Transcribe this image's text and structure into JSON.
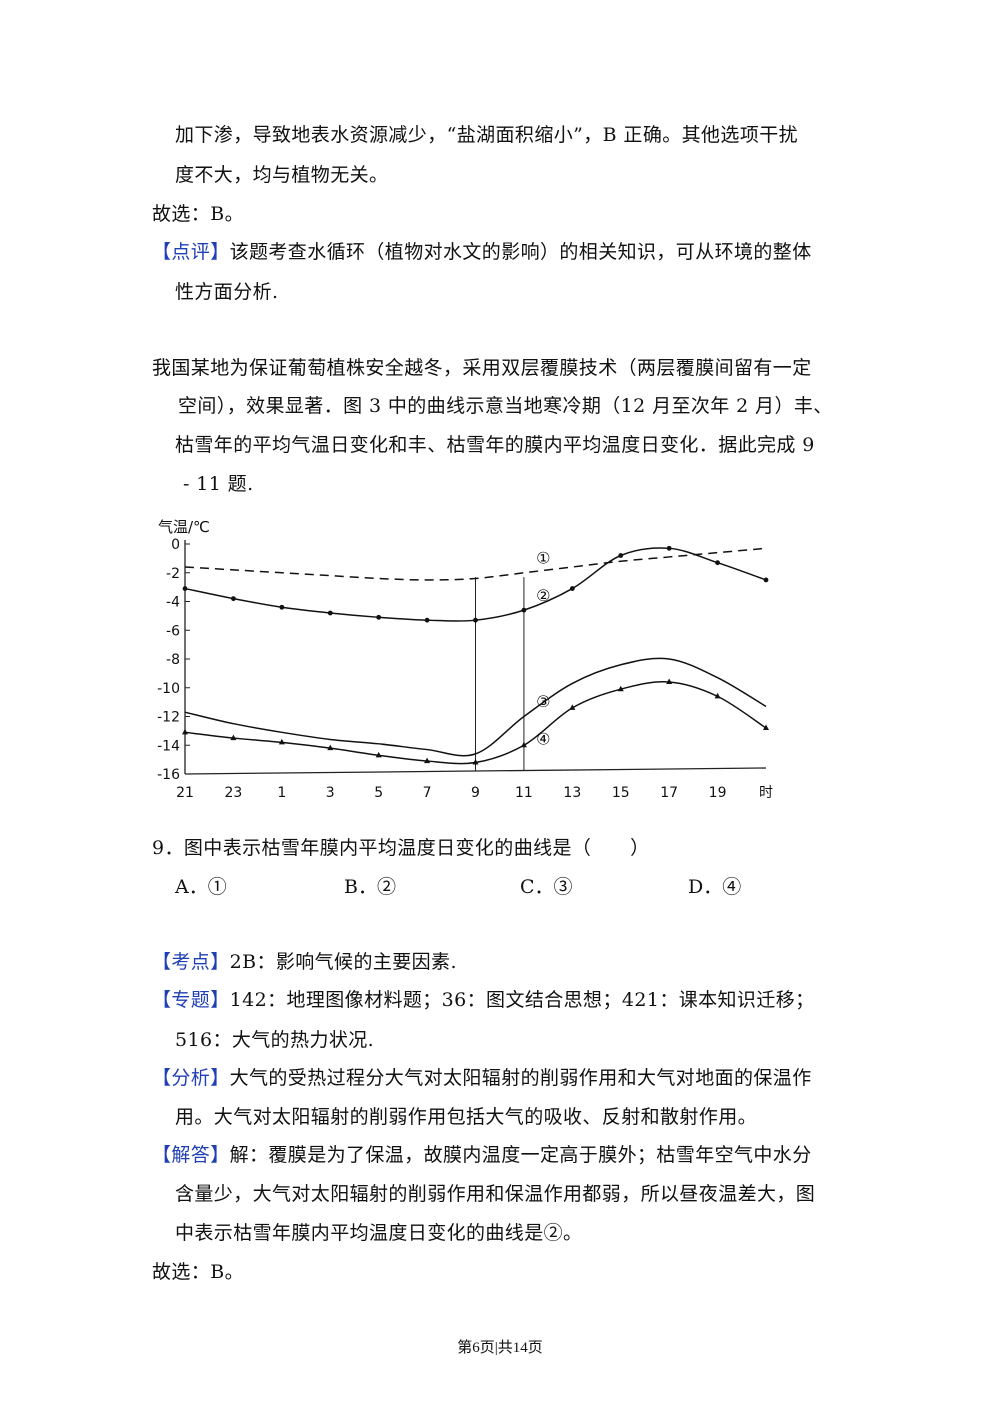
{
  "prev": {
    "line1": "加下渗，导致地表水资源减少，“盐湖面积缩小”，B 正确。其他选项干扰",
    "line2": "度不大，均与植物无关。",
    "answer": "故选：B。",
    "comment_tag": "【点评】",
    "comment_line1": "该题考查水循环（植物对水文的影响）的相关知识，可从环境的整体",
    "comment_line2": "性方面分析."
  },
  "intro": {
    "line1": "我国某地为保证葡萄植株安全越冬，采用双层覆膜技术（两层覆膜间留有一定",
    "line2": "空间），效果显著．图 3 中的曲线示意当地寒冷期（12 月至次年 2 月）丰、",
    "line3": "枯雪年的平均气温日变化和丰、枯雪年的膜内平均温度日变化．据此完成 9",
    "line4": "- 11 题."
  },
  "chart_data": {
    "type": "line",
    "ylabel": "气温/℃",
    "xlabel": "时",
    "ylim": [
      -16,
      0
    ],
    "yticks": [
      "0",
      "-2",
      "-4",
      "-6",
      "-8",
      "-10",
      "-12",
      "-14",
      "-16"
    ],
    "xticks": [
      "21",
      "23",
      "1",
      "3",
      "5",
      "7",
      "9",
      "11",
      "13",
      "15",
      "17",
      "19",
      "时"
    ],
    "x": [
      "21",
      "23",
      "1",
      "3",
      "5",
      "7",
      "9",
      "11",
      "13",
      "15",
      "17",
      "19",
      "21"
    ],
    "series": [
      {
        "name": "①",
        "style": "dashed",
        "values": [
          -1.6,
          -1.8,
          -2.0,
          -2.2,
          -2.4,
          -2.5,
          -2.4,
          -2.0,
          -1.6,
          -1.2,
          -0.9,
          -0.6,
          -0.3
        ]
      },
      {
        "name": "②",
        "style": "solid-dots",
        "values": [
          -3.1,
          -3.8,
          -4.4,
          -4.8,
          -5.1,
          -5.3,
          -5.3,
          -4.6,
          -3.1,
          -0.8,
          -0.3,
          -1.3,
          -2.5
        ]
      },
      {
        "name": "③",
        "style": "solid",
        "values": [
          -11.7,
          -12.5,
          -13.1,
          -13.6,
          -13.9,
          -14.3,
          -14.6,
          -12.0,
          -9.7,
          -8.4,
          -8.0,
          -9.3,
          -11.3
        ]
      },
      {
        "name": "④",
        "style": "solid-triangles",
        "values": [
          -13.1,
          -13.5,
          -13.8,
          -14.2,
          -14.7,
          -15.1,
          -15.2,
          -14.0,
          -11.4,
          -10.1,
          -9.6,
          -10.6,
          -12.8
        ]
      }
    ],
    "grid": false,
    "legend": "inline circled labels near x=11"
  },
  "question": {
    "stem": "9．图中表示枯雪年膜内平均温度日变化的曲线是（　　）",
    "options": [
      "A．①",
      "B．②",
      "C．③",
      "D．④"
    ]
  },
  "analysis": {
    "kaodian_tag": "【考点】",
    "kaodian": "2B：影响气候的主要因素.",
    "zhuanti_tag": "【专题】",
    "zhuanti_line1": "142：地理图像材料题；36：图文结合思想；421：课本知识迁移；",
    "zhuanti_line2": "516：大气的热力状况.",
    "fenxi_tag": "【分析】",
    "fenxi_line1": "大气的受热过程分大气对太阳辐射的削弱作用和大气对地面的保温作",
    "fenxi_line2": "用。大气对太阳辐射的削弱作用包括大气的吸收、反射和散射作用。",
    "jieda_tag": "【解答】",
    "jieda_line1": "解：覆膜是为了保温，故膜内温度一定高于膜外；枯雪年空气中水分",
    "jieda_line2": "含量少，大气对太阳辐射的削弱作用和保温作用都弱，所以昼夜温差大，图",
    "jieda_line3": "中表示枯雪年膜内平均温度日变化的曲线是②。",
    "answer": "故选：B。"
  },
  "footer": "第6页|共14页"
}
